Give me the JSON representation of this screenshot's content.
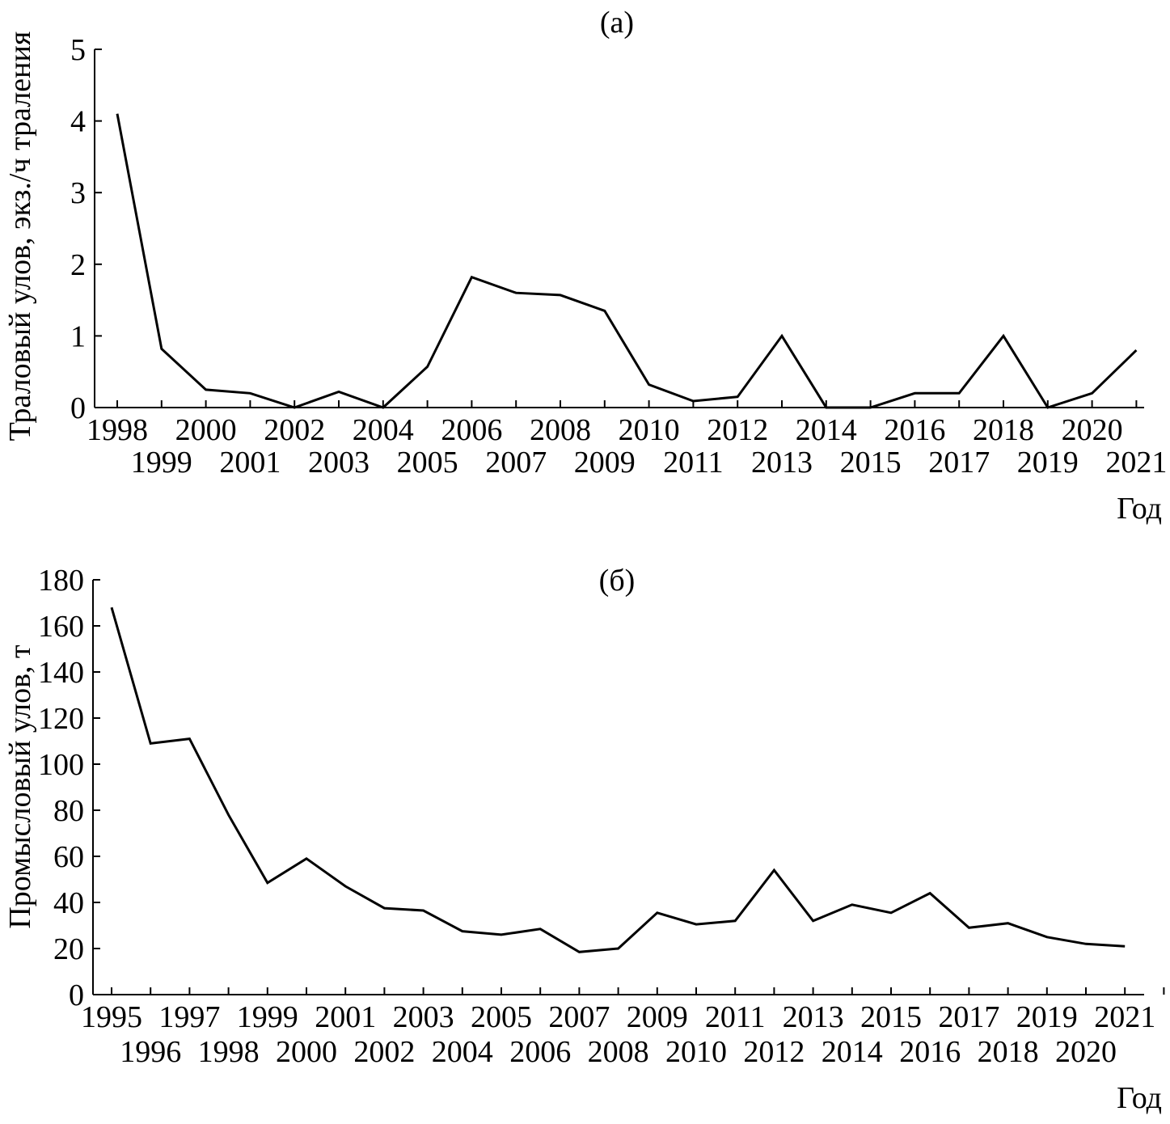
{
  "chart_data": [
    {
      "type": "line",
      "title": "(а)",
      "ylabel": "Траловый улов, экз./ч траления",
      "xlabel": "Год",
      "ylim": [
        0,
        5
      ],
      "yticks": [
        "0",
        "1",
        "2",
        "3",
        "4",
        "5"
      ],
      "x": [
        "1998",
        "1999",
        "2000",
        "2001",
        "2002",
        "2003",
        "2004",
        "2005",
        "2006",
        "2007",
        "2008",
        "2009",
        "2010",
        "2011",
        "2012",
        "2013",
        "2014",
        "2015",
        "2016",
        "2017",
        "2018",
        "2019",
        "2020",
        "2021"
      ],
      "series": [
        {
          "values": [
            4.1,
            0.82,
            0.25,
            0.2,
            0.0,
            0.22,
            0.0,
            0.57,
            1.82,
            1.6,
            1.57,
            1.35,
            0.32,
            0.09,
            0.15,
            1.0,
            0.0,
            0.0,
            0.2,
            0.2,
            1.0,
            0.0,
            0.2,
            0.8
          ]
        }
      ],
      "grid": false
    },
    {
      "type": "line",
      "title": "(б)",
      "ylabel": "Промысловый улов, т",
      "xlabel": "Год",
      "ylim": [
        0,
        180
      ],
      "yticks": [
        "0",
        "20",
        "40",
        "60",
        "80",
        "100",
        "120",
        "140",
        "160",
        "180"
      ],
      "x": [
        "1995",
        "1996",
        "1997",
        "1998",
        "1999",
        "2000",
        "2001",
        "2002",
        "2003",
        "2004",
        "2005",
        "2006",
        "2007",
        "2008",
        "2009",
        "2010",
        "2011",
        "2012",
        "2013",
        "2014",
        "2015",
        "2016",
        "2017",
        "2018",
        "2019",
        "2020",
        "2021"
      ],
      "series": [
        {
          "values": [
            168,
            109,
            111,
            78,
            48.5,
            59,
            47,
            37.5,
            36.5,
            27.5,
            26,
            28.5,
            18.5,
            20,
            35.5,
            30.5,
            32,
            54,
            32,
            39,
            35.5,
            44,
            29,
            31,
            25,
            22,
            21
          ]
        }
      ],
      "grid": false
    }
  ]
}
